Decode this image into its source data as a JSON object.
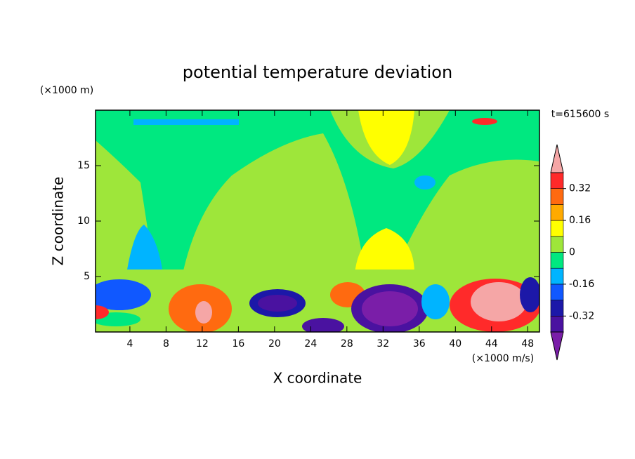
{
  "chart_data": {
    "type": "contour",
    "title": "potential temperature deviation",
    "x_label": "X coordinate",
    "y_label": "Z coordinate",
    "x_unit": "(×1000 m/s)",
    "y_unit": "(×1000 m)",
    "time_label": "t=615600 s",
    "xlim": [
      0.2,
      49.3
    ],
    "xticks": [
      4,
      8,
      12,
      16,
      20,
      24,
      28,
      32,
      36,
      40,
      44,
      48
    ],
    "ylim": [
      0,
      20
    ],
    "yticks": [
      5,
      10,
      15
    ],
    "colorbar": {
      "levels": [
        -0.4,
        -0.32,
        -0.24,
        -0.16,
        -0.08,
        0,
        0.08,
        0.16,
        0.24,
        0.32,
        0.4
      ],
      "ticks": [
        -0.32,
        -0.16,
        0,
        0.16,
        0.32
      ],
      "colors": [
        "#7a1ea8",
        "#4a12a0",
        "#1c18a8",
        "#1058ff",
        "#00b4ff",
        "#00e880",
        "#9ee63a",
        "#ffff00",
        "#ffaa00",
        "#ff6a10",
        "#ff2a2a",
        "#f5a6a6"
      ]
    }
  }
}
